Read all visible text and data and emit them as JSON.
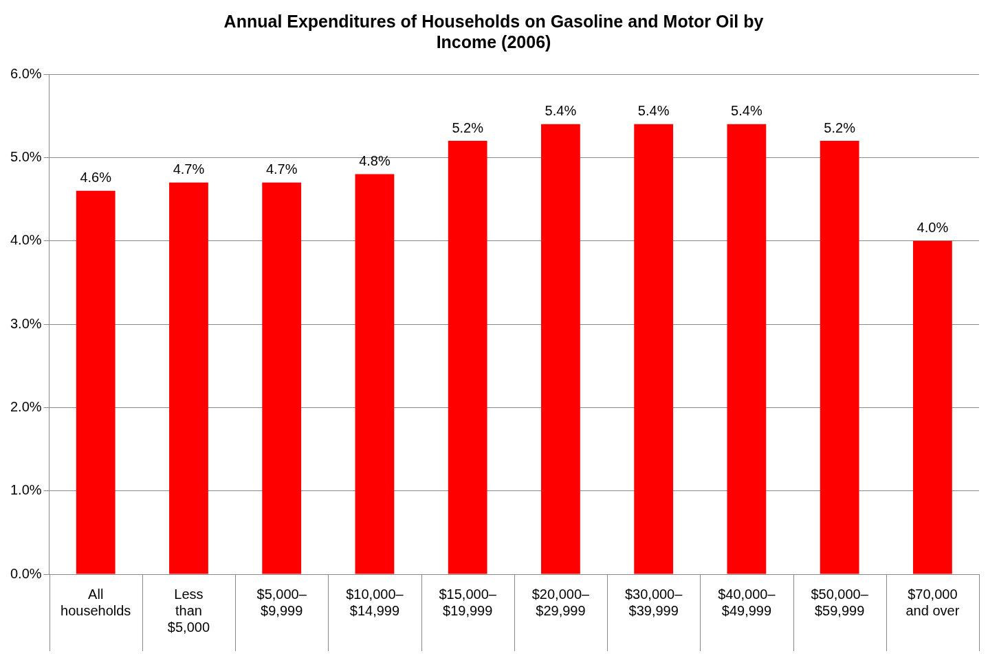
{
  "chart_data": {
    "type": "bar",
    "title": "Annual Expenditures of Households on Gasoline and Motor Oil by Income (2006)",
    "categories": [
      "All households",
      "Less than $5,000",
      "$5,000–$9,999",
      "$10,000–$14,999",
      "$15,000–$19,999",
      "$20,000–$29,999",
      "$30,000–$39,999",
      "$40,000–$49,999",
      "$50,000–$59,999",
      "$70,000 and over"
    ],
    "values": [
      4.6,
      4.7,
      4.7,
      4.8,
      5.2,
      5.4,
      5.4,
      5.4,
      5.2,
      4.0
    ],
    "value_labels": [
      "4.6%",
      "4.7%",
      "4.7%",
      "4.8%",
      "5.2%",
      "5.4%",
      "5.4%",
      "5.4%",
      "5.2%",
      "4.0%"
    ],
    "color": "#ff0000",
    "ylim": [
      0,
      6
    ],
    "yticks": [
      {
        "value": 0,
        "label": "0.0%"
      },
      {
        "value": 1,
        "label": "1.0%"
      },
      {
        "value": 2,
        "label": "2.0%"
      },
      {
        "value": 3,
        "label": "3.0%"
      },
      {
        "value": 4,
        "label": "4.0%"
      },
      {
        "value": 5,
        "label": "5.0%"
      },
      {
        "value": 6,
        "label": "6.0%"
      }
    ],
    "grid": "y",
    "legend": false
  }
}
